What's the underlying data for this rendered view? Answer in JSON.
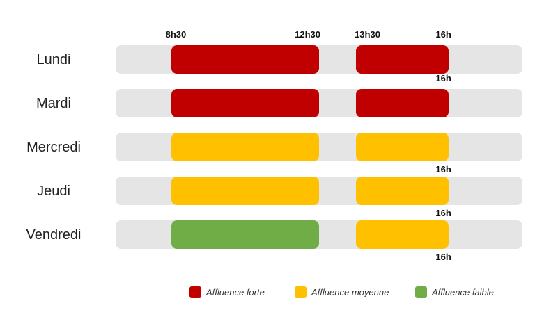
{
  "colors": {
    "forte": "#c00000",
    "moyenne": "#ffc000",
    "faible": "#70ad47",
    "track": "#e6e5e6"
  },
  "legend": [
    {
      "key": "forte",
      "label": "Affluence forte"
    },
    {
      "key": "moyenne",
      "label": "Affluence moyenne"
    },
    {
      "key": "faible",
      "label": "Affluence faible"
    }
  ],
  "chart_data": {
    "type": "bar",
    "title": "",
    "x_unit": "hours",
    "xlim": [
      7,
      18
    ],
    "categories": [
      "Lundi",
      "Mardi",
      "Mercredi",
      "Jeudi",
      "Vendredi"
    ],
    "series": [
      {
        "name": "Lundi",
        "segments": [
          {
            "start": 8.5,
            "end": 12.5,
            "level": "forte"
          },
          {
            "start": 13.5,
            "end": 16,
            "level": "forte"
          }
        ]
      },
      {
        "name": "Mardi",
        "segments": [
          {
            "start": 8.5,
            "end": 12.5,
            "level": "forte"
          },
          {
            "start": 13.5,
            "end": 16,
            "level": "forte"
          }
        ]
      },
      {
        "name": "Mercredi",
        "segments": [
          {
            "start": 8.5,
            "end": 12.5,
            "level": "moyenne"
          },
          {
            "start": 13.5,
            "end": 16,
            "level": "moyenne"
          }
        ]
      },
      {
        "name": "Jeudi",
        "segments": [
          {
            "start": 8.5,
            "end": 12.5,
            "level": "moyenne"
          },
          {
            "start": 13.5,
            "end": 16,
            "level": "moyenne"
          }
        ]
      },
      {
        "name": "Vendredi",
        "segments": [
          {
            "start": 8.5,
            "end": 12.5,
            "level": "faible"
          },
          {
            "start": 13.5,
            "end": 16,
            "level": "moyenne"
          }
        ]
      }
    ],
    "time_labels": [
      {
        "text": "8h30",
        "value": 8.5,
        "row": 0,
        "position": "above"
      },
      {
        "text": "12h30",
        "value": 12.5,
        "row": 0,
        "position": "above"
      },
      {
        "text": "13h30",
        "value": 13.5,
        "row": 0,
        "position": "above"
      },
      {
        "text": "16h",
        "value": 16,
        "row": 0,
        "position": "above"
      },
      {
        "text": "16h",
        "value": 16,
        "row": 1,
        "position": "above"
      },
      {
        "text": "16h",
        "value": 16,
        "row": 2,
        "position": "below"
      },
      {
        "text": "16h",
        "value": 16,
        "row": 3,
        "position": "below"
      },
      {
        "text": "16h",
        "value": 16,
        "row": 4,
        "position": "below"
      }
    ]
  }
}
